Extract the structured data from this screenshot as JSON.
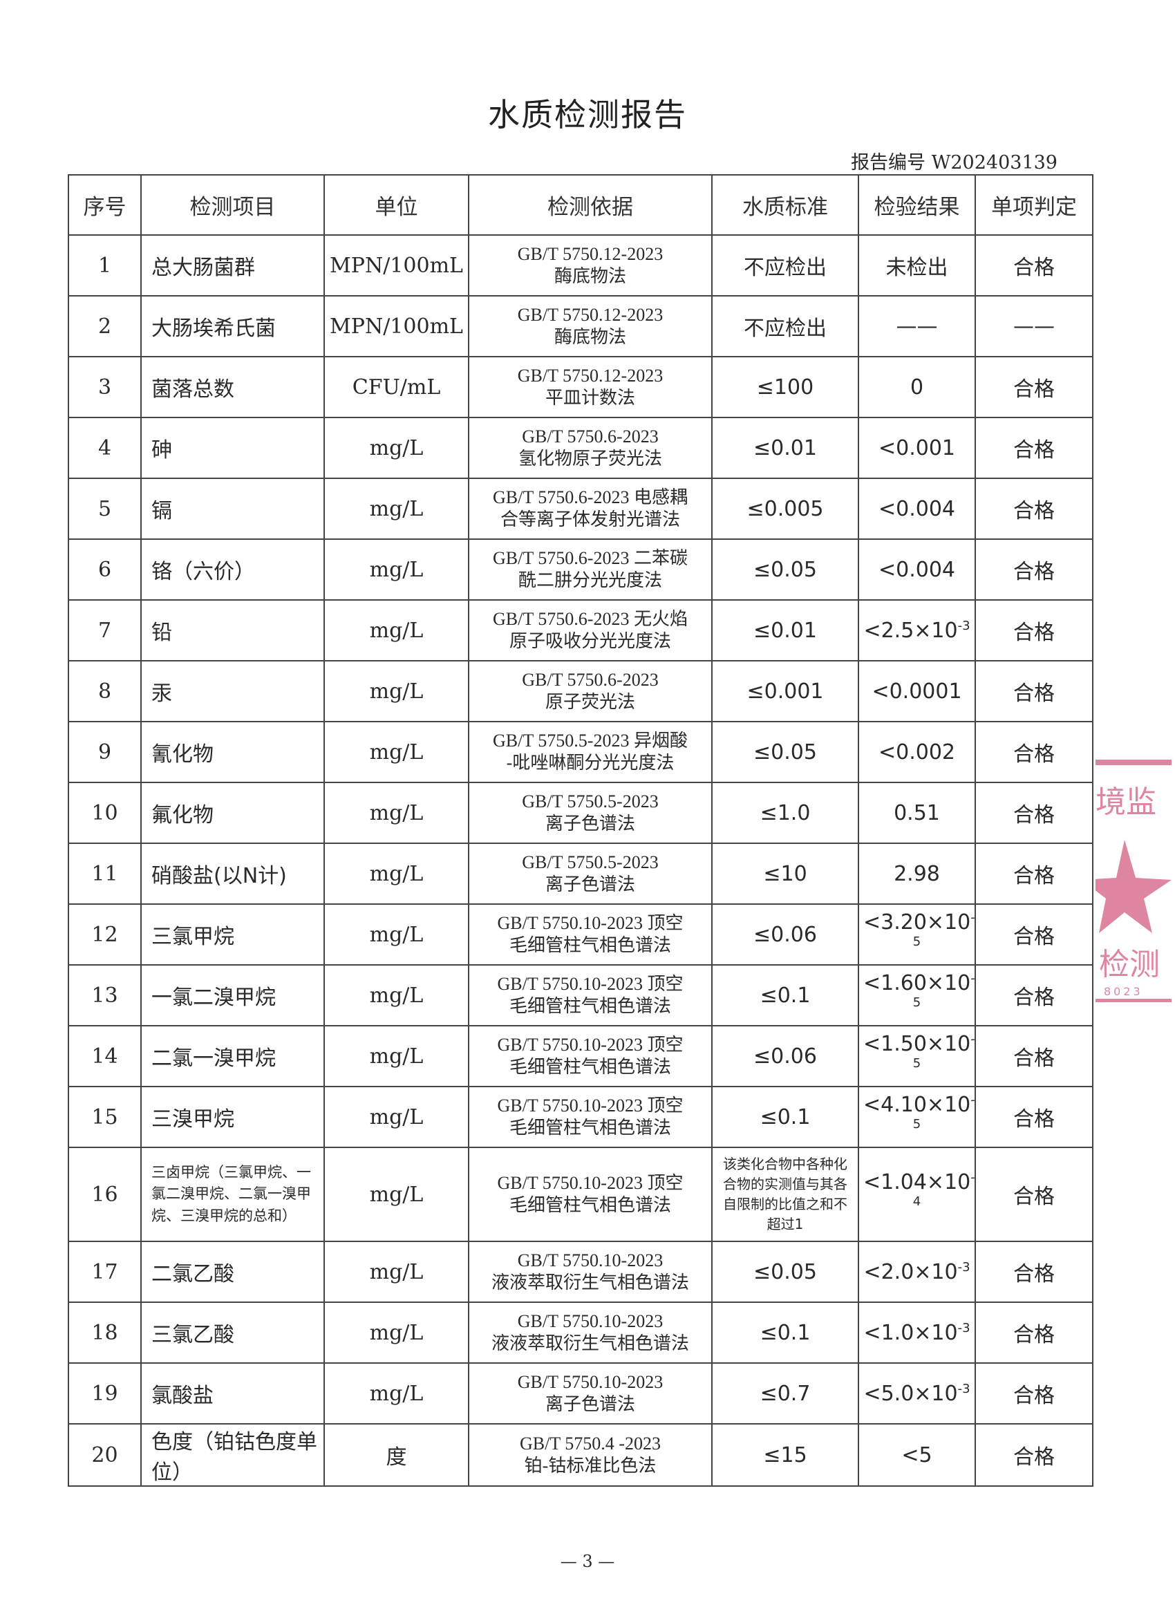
{
  "title": "水质检测报告",
  "report_number_label": "报告编号 W202403139",
  "headers": [
    "序号",
    "检测项目",
    "单位",
    "检测依据",
    "水质标准",
    "检验结果",
    "单项判定"
  ],
  "rows": [
    {
      "no": "1",
      "item": "总大肠菌群",
      "unit": "MPN/100mL",
      "method": [
        "GB/T 5750.12-2023",
        "酶底物法"
      ],
      "standard": "不应检出",
      "result": "未检出",
      "sup": "",
      "verdict": "合格"
    },
    {
      "no": "2",
      "item": "大肠埃希氏菌",
      "unit": "MPN/100mL",
      "method": [
        "GB/T 5750.12-2023",
        "酶底物法"
      ],
      "standard": "不应检出",
      "result": "——",
      "sup": "",
      "verdict": "——"
    },
    {
      "no": "3",
      "item": "菌落总数",
      "unit": "CFU/mL",
      "method": [
        "GB/T 5750.12-2023",
        "平皿计数法"
      ],
      "standard": "≤100",
      "result": "0",
      "sup": "",
      "verdict": "合格"
    },
    {
      "no": "4",
      "item": "砷",
      "unit": "mg/L",
      "method": [
        "GB/T 5750.6-2023",
        "氢化物原子荧光法"
      ],
      "standard": "≤0.01",
      "result": "<0.001",
      "sup": "",
      "verdict": "合格"
    },
    {
      "no": "5",
      "item": "镉",
      "unit": "mg/L",
      "method": [
        "GB/T 5750.6-2023 电感耦",
        "合等离子体发射光谱法"
      ],
      "standard": "≤0.005",
      "result": "<0.004",
      "sup": "",
      "verdict": "合格"
    },
    {
      "no": "6",
      "item": "铬（六价）",
      "unit": "mg/L",
      "method": [
        "GB/T 5750.6-2023 二苯碳",
        "酰二肼分光光度法"
      ],
      "standard": "≤0.05",
      "result": "<0.004",
      "sup": "",
      "verdict": "合格"
    },
    {
      "no": "7",
      "item": "铅",
      "unit": "mg/L",
      "method": [
        "GB/T 5750.6-2023 无火焰",
        "原子吸收分光光度法"
      ],
      "standard": "≤0.01",
      "result": "<2.5×10",
      "sup": "-3",
      "verdict": "合格"
    },
    {
      "no": "8",
      "item": "汞",
      "unit": "mg/L",
      "method": [
        "GB/T 5750.6-2023",
        "原子荧光法"
      ],
      "standard": "≤0.001",
      "result": "<0.0001",
      "sup": "",
      "verdict": "合格"
    },
    {
      "no": "9",
      "item": "氰化物",
      "unit": "mg/L",
      "method": [
        "GB/T 5750.5-2023 异烟酸",
        "-吡唑啉酮分光光度法"
      ],
      "standard": "≤0.05",
      "result": "<0.002",
      "sup": "",
      "verdict": "合格"
    },
    {
      "no": "10",
      "item": "氟化物",
      "unit": "mg/L",
      "method": [
        "GB/T 5750.5-2023",
        "离子色谱法"
      ],
      "standard": "≤1.0",
      "result": "0.51",
      "sup": "",
      "verdict": "合格"
    },
    {
      "no": "11",
      "item": "硝酸盐(以N计)",
      "unit": "mg/L",
      "method": [
        "GB/T 5750.5-2023",
        "离子色谱法"
      ],
      "standard": "≤10",
      "result": "2.98",
      "sup": "",
      "verdict": "合格"
    },
    {
      "no": "12",
      "item": "三氯甲烷",
      "unit": "mg/L",
      "method": [
        "GB/T 5750.10-2023 顶空",
        "毛细管柱气相色谱法"
      ],
      "standard": "≤0.06",
      "result": "<3.20×10",
      "sup": "-5",
      "verdict": "合格"
    },
    {
      "no": "13",
      "item": "一氯二溴甲烷",
      "unit": "mg/L",
      "method": [
        "GB/T 5750.10-2023 顶空",
        "毛细管柱气相色谱法"
      ],
      "standard": "≤0.1",
      "result": "<1.60×10",
      "sup": "-5",
      "verdict": "合格"
    },
    {
      "no": "14",
      "item": "二氯一溴甲烷",
      "unit": "mg/L",
      "method": [
        "GB/T 5750.10-2023 顶空",
        "毛细管柱气相色谱法"
      ],
      "standard": "≤0.06",
      "result": "<1.50×10",
      "sup": "-5",
      "verdict": "合格"
    },
    {
      "no": "15",
      "item": "三溴甲烷",
      "unit": "mg/L",
      "method": [
        "GB/T 5750.10-2023 顶空",
        "毛细管柱气相色谱法"
      ],
      "standard": "≤0.1",
      "result": "<4.10×10",
      "sup": "-5",
      "verdict": "合格"
    },
    {
      "no": "16",
      "item": "三卤甲烷（三氯甲烷、一氯二溴甲烷、二氯一溴甲烷、三溴甲烷的总和）",
      "unit": "mg/L",
      "method": [
        "GB/T 5750.10-2023 顶空",
        "毛细管柱气相色谱法"
      ],
      "standard": "该类化合物中各种化合物的实测值与其各自限制的比值之和不超过1",
      "result": "<1.04×10",
      "sup": "-4",
      "verdict": "合格"
    },
    {
      "no": "17",
      "item": "二氯乙酸",
      "unit": "mg/L",
      "method": [
        "GB/T 5750.10-2023",
        "液液萃取衍生气相色谱法"
      ],
      "standard": "≤0.05",
      "result": "<2.0×10",
      "sup": "-3",
      "verdict": "合格"
    },
    {
      "no": "18",
      "item": "三氯乙酸",
      "unit": "mg/L",
      "method": [
        "GB/T 5750.10-2023",
        "液液萃取衍生气相色谱法"
      ],
      "standard": "≤0.1",
      "result": "<1.0×10",
      "sup": "-3",
      "verdict": "合格"
    },
    {
      "no": "19",
      "item": "氯酸盐",
      "unit": "mg/L",
      "method": [
        "GB/T 5750.10-2023",
        "离子色谱法"
      ],
      "standard": "≤0.7",
      "result": "<5.0×10",
      "sup": "-3",
      "verdict": "合格"
    },
    {
      "no": "20",
      "item": "色度（铂钴色度单位）",
      "unit": "度",
      "method": [
        "GB/T 5750.4 -2023",
        "铂-钴标准比色法"
      ],
      "standard": "≤15",
      "result": "<5",
      "sup": "",
      "verdict": "合格"
    }
  ],
  "page_number": "— 3 —",
  "stamp": {
    "text_top": "境监",
    "text_bottom": "检测",
    "digits": "8023",
    "color": "#d9708f"
  }
}
